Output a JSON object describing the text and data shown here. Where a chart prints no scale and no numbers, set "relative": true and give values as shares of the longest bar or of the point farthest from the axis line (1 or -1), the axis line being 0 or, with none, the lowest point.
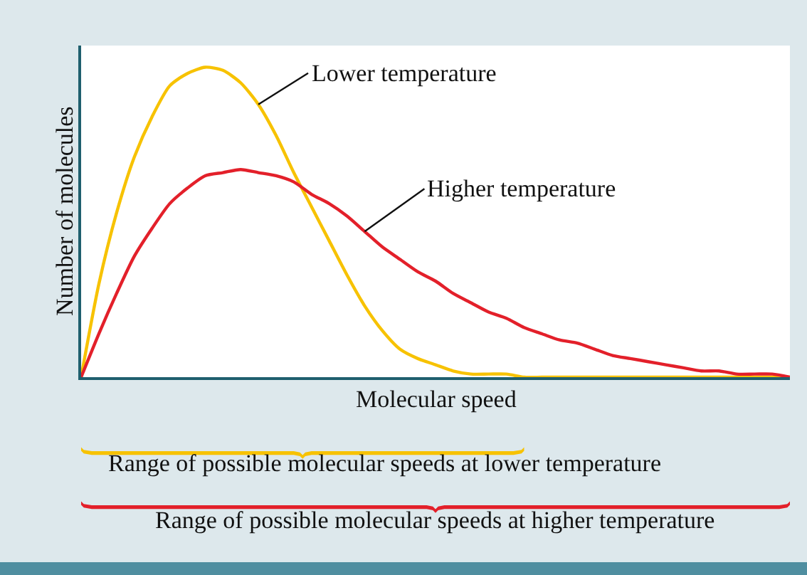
{
  "chart_data": {
    "type": "line",
    "relative": true,
    "xlabel": "Molecular speed",
    "ylabel": "Number of molecules",
    "categories": [
      null,
      null,
      null,
      null,
      null,
      null,
      null,
      null,
      null,
      null,
      null,
      null,
      null,
      null,
      null,
      null,
      null,
      null,
      null,
      null,
      null,
      null,
      null,
      null,
      null,
      null,
      null,
      null,
      null,
      null,
      null,
      null,
      null,
      null,
      null,
      null,
      null,
      null,
      null,
      null,
      null
    ],
    "series": [
      {
        "name": "Lower temperature",
        "color": "#f7c200",
        "values": [
          0,
          0.3,
          0.53,
          0.71,
          0.84,
          0.94,
          0.98,
          1.0,
          0.99,
          0.95,
          0.88,
          0.78,
          0.66,
          0.55,
          0.44,
          0.33,
          0.23,
          0.15,
          0.09,
          0.06,
          0.04,
          0.02,
          0.01,
          0.01,
          0.01,
          0,
          0,
          0,
          0,
          0,
          0,
          0,
          0,
          0,
          0,
          0,
          0,
          0,
          0,
          0,
          0
        ]
      },
      {
        "name": "Higher temperature",
        "color": "#e3202a",
        "values": [
          0,
          0.14,
          0.27,
          0.39,
          0.48,
          0.56,
          0.61,
          0.65,
          0.66,
          0.67,
          0.66,
          0.65,
          0.63,
          0.59,
          0.56,
          0.52,
          0.47,
          0.42,
          0.38,
          0.34,
          0.31,
          0.27,
          0.24,
          0.21,
          0.19,
          0.16,
          0.14,
          0.12,
          0.11,
          0.09,
          0.07,
          0.06,
          0.05,
          0.04,
          0.03,
          0.02,
          0.02,
          0.01,
          0.01,
          0.01,
          0
        ]
      }
    ],
    "annotations": [
      "Range of possible molecular speeds at lower temperature",
      "Range of possible molecular speeds at higher temperature"
    ],
    "legend": false,
    "grid": false,
    "marker": "none",
    "line_style": "solid"
  }
}
